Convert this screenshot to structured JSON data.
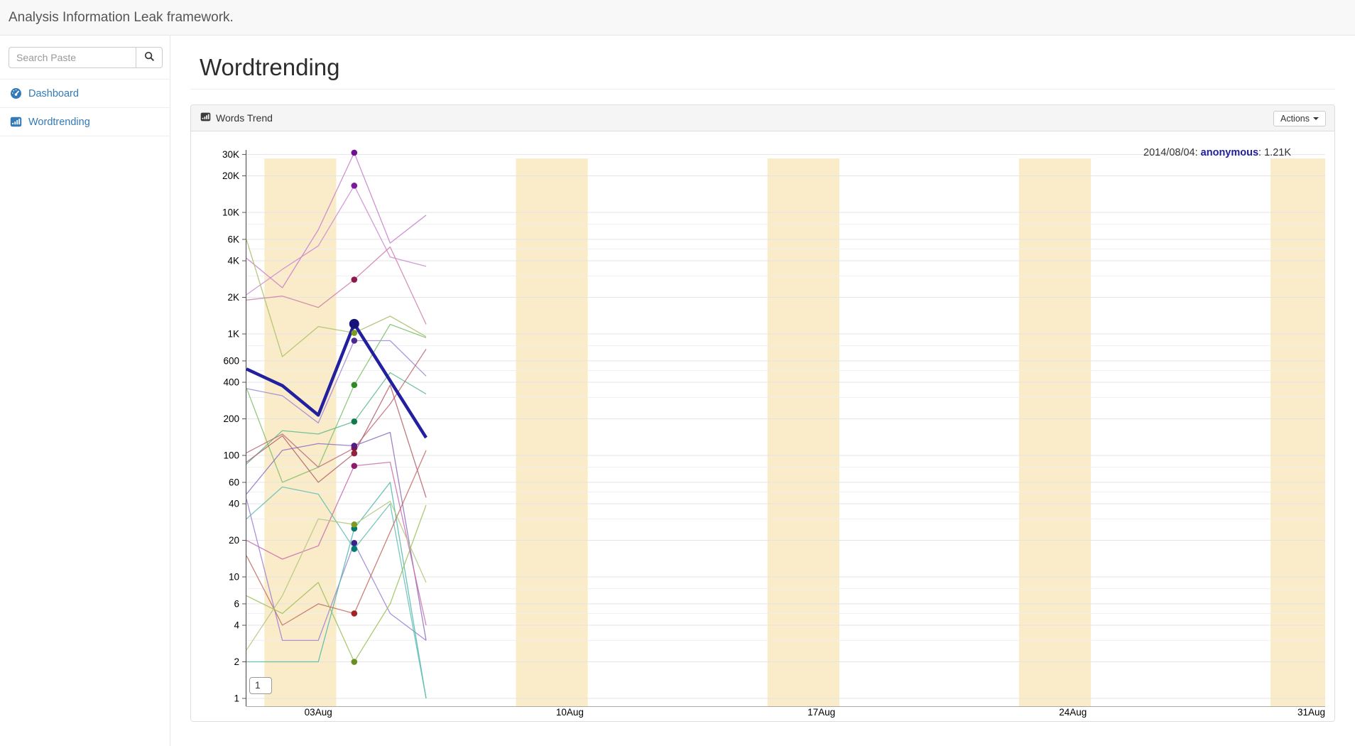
{
  "navbar": {
    "brand": "Analysis Information Leak framework."
  },
  "sidebar": {
    "search": {
      "placeholder": "Search Paste"
    },
    "items": [
      {
        "label": "Dashboard"
      },
      {
        "label": "Wordtrending"
      }
    ]
  },
  "main": {
    "title": "Wordtrending",
    "panel": {
      "title": "Words Trend",
      "actions_label": "Actions"
    },
    "page_indicator": "1"
  },
  "chart_data": {
    "type": "line",
    "title": "Words Trend",
    "x_axis": {
      "month": "2014-08",
      "tick_labels": [
        "03Aug",
        "10Aug",
        "17Aug",
        "24Aug",
        "31Aug"
      ],
      "tick_days": [
        3,
        10,
        17,
        24,
        31
      ],
      "domain_days": [
        1,
        31
      ]
    },
    "y_axis": {
      "scale": "log",
      "tick_labels": [
        "30K",
        "20K",
        "10K",
        "6K",
        "4K",
        "2K",
        "1K",
        "600",
        "400",
        "200",
        "100",
        "60",
        "40",
        "20",
        "10",
        "6",
        "4",
        "2",
        "1"
      ],
      "tick_values": [
        30000,
        20000,
        10000,
        6000,
        4000,
        2000,
        1000,
        600,
        400,
        200,
        100,
        60,
        40,
        20,
        10,
        6,
        4,
        2,
        1
      ],
      "minor_values": [
        3,
        5,
        8,
        30,
        50,
        80,
        300,
        500,
        800,
        3000,
        5000,
        8000
      ]
    },
    "weekend_bands_days": [
      [
        1.5,
        3.5
      ],
      [
        8.5,
        10.5
      ],
      [
        15.5,
        17.5
      ],
      [
        22.5,
        24.5
      ],
      [
        29.5,
        31.05
      ]
    ],
    "band_color": "#faecc8",
    "grid_color": "#e4e4e4",
    "minor_grid_color": "#efefef",
    "highlight": {
      "date": "2014/08/04",
      "series": "anonymous",
      "value": "1.21K",
      "day": 4
    },
    "series": [
      {
        "id": "anonymous",
        "name": "anonymous",
        "color": "#23209f",
        "dot_color": "#15137a",
        "width": 4.5,
        "days": [
          1,
          2,
          3,
          4,
          6
        ],
        "values": [
          515,
          375,
          215,
          1210,
          140
        ]
      },
      {
        "id": "series-2",
        "name": "",
        "color": "#c77fce",
        "dot_color": "#70128f",
        "width": 1.3,
        "days": [
          1,
          2,
          3,
          4,
          5,
          6
        ],
        "values": [
          4200,
          2400,
          7200,
          31000,
          5600,
          9500
        ]
      },
      {
        "id": "series-3",
        "name": "",
        "color": "#cd87d2",
        "dot_color": "#7a1b9b",
        "width": 1.3,
        "days": [
          1,
          2,
          3,
          4,
          5,
          6
        ],
        "values": [
          2100,
          3400,
          5300,
          16600,
          4300,
          3600
        ]
      },
      {
        "id": "series-4",
        "name": "",
        "color": "#cf7fae",
        "dot_color": "#8b1a4a",
        "width": 1.3,
        "days": [
          1,
          2,
          3,
          4,
          5,
          6
        ],
        "values": [
          1900,
          2050,
          1650,
          2800,
          5200,
          1200
        ]
      },
      {
        "id": "series-5",
        "name": "",
        "color": "#9d85d6",
        "dot_color": "#4b2a8f",
        "width": 1.3,
        "days": [
          1,
          2,
          3,
          4,
          5,
          6
        ],
        "values": [
          355,
          310,
          185,
          880,
          880,
          450
        ]
      },
      {
        "id": "series-6",
        "name": "",
        "color": "#a9bf6b",
        "dot_color": "#7d9b1e",
        "width": 1.3,
        "days": [
          1,
          2,
          3,
          4,
          5,
          6
        ],
        "values": [
          6000,
          650,
          1150,
          1020,
          1400,
          950
        ]
      },
      {
        "id": "series-7",
        "name": "",
        "color": "#7fbf6b",
        "dot_color": "#2e8b22",
        "width": 1.3,
        "days": [
          1,
          2,
          3,
          4,
          5,
          6
        ],
        "values": [
          360,
          60,
          80,
          380,
          1200,
          930
        ]
      },
      {
        "id": "series-8",
        "name": "",
        "color": "#5cb98e",
        "dot_color": "#0f7a4d",
        "width": 1.3,
        "days": [
          1,
          2,
          3,
          4,
          5,
          6
        ],
        "values": [
          85,
          160,
          150,
          190,
          480,
          320
        ]
      },
      {
        "id": "series-9",
        "name": "",
        "color": "#bd6b78",
        "dot_color": "#8b1538",
        "width": 1.3,
        "days": [
          1,
          2,
          3,
          4,
          5,
          6
        ],
        "values": [
          105,
          150,
          80,
          115,
          265,
          750
        ]
      },
      {
        "id": "series-10",
        "name": "",
        "color": "#b4606d",
        "dot_color": "#93203f",
        "width": 1.3,
        "days": [
          1,
          2,
          3,
          4,
          5,
          6
        ],
        "values": [
          88,
          145,
          60,
          104,
          380,
          45
        ]
      },
      {
        "id": "series-11",
        "name": "",
        "color": "#8d6fc0",
        "dot_color": "#531d85",
        "width": 1.3,
        "days": [
          1,
          2,
          3,
          4,
          5,
          6
        ],
        "values": [
          48,
          110,
          125,
          120,
          155,
          3
        ]
      },
      {
        "id": "series-12",
        "name": "",
        "color": "#c96cae",
        "dot_color": "#8f1b6c",
        "width": 1.3,
        "days": [
          1,
          2,
          3,
          4,
          5,
          6
        ],
        "values": [
          20,
          14,
          18,
          82,
          88,
          4
        ]
      },
      {
        "id": "series-13",
        "name": "",
        "color": "#9b7fd4",
        "dot_color": "#3a1f8f",
        "width": 1.3,
        "days": [
          1,
          2,
          3,
          4,
          5,
          6
        ],
        "values": [
          44,
          3,
          3,
          19,
          5,
          3
        ]
      },
      {
        "id": "series-14",
        "name": "",
        "color": "#4db8ab",
        "dot_color": "#00756b",
        "width": 1.3,
        "days": [
          1,
          2,
          3,
          4,
          5,
          6
        ],
        "values": [
          2,
          2,
          2,
          25,
          60,
          1
        ]
      },
      {
        "id": "series-15",
        "name": "",
        "color": "#63bdb3",
        "dot_color": "#007d72",
        "width": 1.3,
        "days": [
          1,
          2,
          3,
          4,
          5,
          6
        ],
        "values": [
          30,
          55,
          48,
          17,
          40,
          1
        ]
      },
      {
        "id": "series-16",
        "name": "",
        "color": "#c36a62",
        "dot_color": "#a32222",
        "width": 1.3,
        "days": [
          1,
          2,
          3,
          4,
          6
        ],
        "values": [
          15,
          4,
          6,
          5,
          110
        ]
      },
      {
        "id": "series-17",
        "name": "",
        "color": "#9dbf5c",
        "dot_color": "#6b8e23",
        "width": 1.3,
        "days": [
          1,
          2,
          3,
          4,
          5,
          6
        ],
        "values": [
          7,
          5,
          9,
          2,
          6,
          39
        ]
      },
      {
        "id": "series-18",
        "name": "",
        "color": "#b3c67e",
        "dot_color": "#7d9b1e",
        "width": 1.3,
        "days": [
          1,
          2,
          3,
          4,
          5,
          6
        ],
        "values": [
          2.5,
          7,
          30,
          27,
          42,
          9
        ]
      }
    ]
  }
}
